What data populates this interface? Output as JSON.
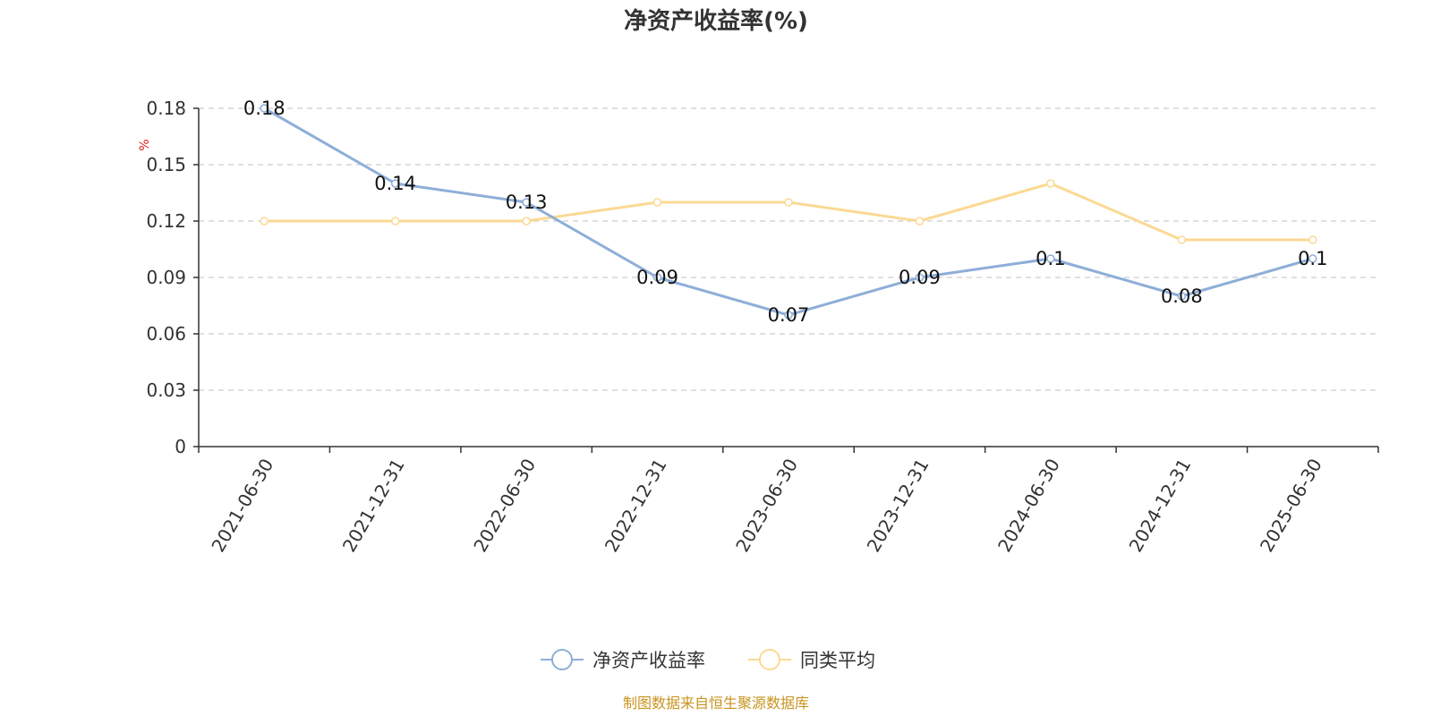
{
  "chart_data": {
    "type": "line",
    "title": "净资产收益率(%)",
    "ylabel": "%",
    "xlabel": "",
    "categories": [
      "2021-06-30",
      "2021-12-31",
      "2022-06-30",
      "2022-12-31",
      "2023-06-30",
      "2023-12-31",
      "2024-06-30",
      "2024-12-31",
      "2025-06-30"
    ],
    "ylim": [
      0,
      0.18
    ],
    "yticks": [
      0,
      0.03,
      0.06,
      0.09,
      0.12,
      0.15,
      0.18
    ],
    "ytick_labels": [
      "0",
      "0.03",
      "0.06",
      "0.09",
      "0.12",
      "0.15",
      "0.18"
    ],
    "grid": true,
    "legend_position": "bottom-center",
    "series": [
      {
        "name": "净资产收益率",
        "color": "#8eaed9",
        "values": [
          0.18,
          0.14,
          0.13,
          0.09,
          0.07,
          0.09,
          0.1,
          0.08,
          0.1
        ],
        "labels": [
          "0.18",
          "0.14",
          "0.13",
          "0.09",
          "0.07",
          "0.09",
          "0.1",
          "0.08",
          "0.1"
        ]
      },
      {
        "name": "同类平均",
        "color": "#fbd994",
        "values": [
          0.12,
          0.12,
          0.12,
          0.13,
          0.13,
          0.12,
          0.14,
          0.11,
          0.11
        ]
      }
    ]
  },
  "colors": {
    "axis": "#333333",
    "grid": "#cccccc",
    "unit": "#e02020",
    "source": "#c8941e"
  },
  "source_text": "制图数据来自恒生聚源数据库"
}
